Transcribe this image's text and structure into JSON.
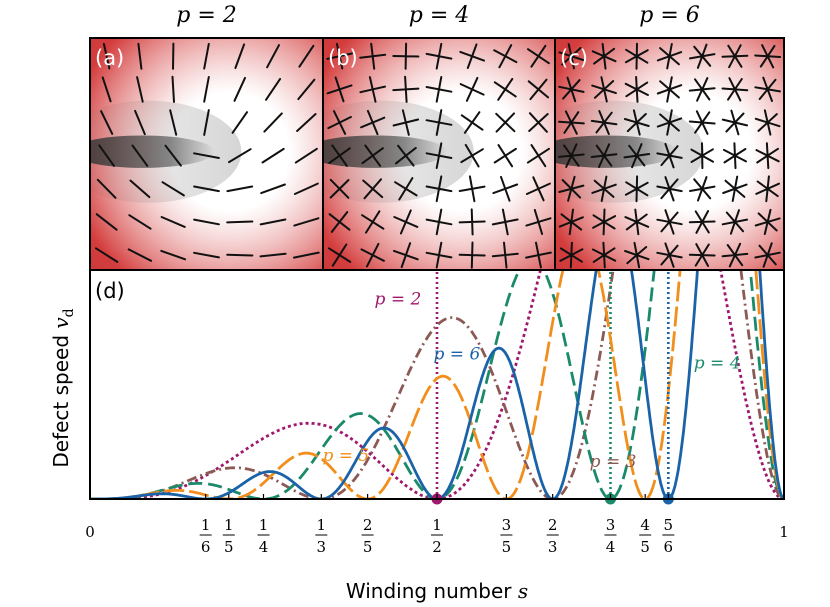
{
  "panels": [
    {
      "label": "(a)",
      "title": "p = 2",
      "p": 2
    },
    {
      "label": "(b)",
      "title": "p = 4",
      "p": 4
    },
    {
      "label": "(c)",
      "title": "p = 6",
      "p": 6
    }
  ],
  "colors": {
    "shade_light": "#ffffff",
    "shade_mid": "#d43d3d",
    "shade_dark": "#3a3a3a"
  },
  "chart_data": {
    "type": "line",
    "panel_label": "(d)",
    "xlabel": "Winding number",
    "xlabel_symbol": "s",
    "ylabel": "Defect speed",
    "ylabel_symbol": "v",
    "ylabel_subscript": "d",
    "xlim": [
      0,
      1
    ],
    "ylim": [
      0,
      1
    ],
    "ticks": [
      {
        "value": 0,
        "num": "0",
        "den": ""
      },
      {
        "value": 0.16667,
        "num": "1",
        "den": "6"
      },
      {
        "value": 0.2,
        "num": "1",
        "den": "5"
      },
      {
        "value": 0.25,
        "num": "1",
        "den": "4"
      },
      {
        "value": 0.33333,
        "num": "1",
        "den": "3"
      },
      {
        "value": 0.4,
        "num": "2",
        "den": "5"
      },
      {
        "value": 0.5,
        "num": "1",
        "den": "2"
      },
      {
        "value": 0.6,
        "num": "3",
        "den": "5"
      },
      {
        "value": 0.66667,
        "num": "2",
        "den": "3"
      },
      {
        "value": 0.75,
        "num": "3",
        "den": "4"
      },
      {
        "value": 0.8,
        "num": "4",
        "den": "5"
      },
      {
        "value": 0.83333,
        "num": "5",
        "den": "6"
      },
      {
        "value": 1,
        "num": "1",
        "den": ""
      }
    ],
    "series": [
      {
        "name": "p = 2",
        "p": 2,
        "color": "#a0186e",
        "dash": "3,3",
        "amp": 0.74,
        "spike_at": 0.5,
        "x": [
          0,
          0.5,
          1
        ],
        "y": [
          0,
          0,
          0
        ],
        "label": {
          "text": "p = 2",
          "x": 0.41,
          "y": 0.85
        }
      },
      {
        "name": "p = 3",
        "p": 3,
        "color": "#8c5a55",
        "dash": "10,4,2,4",
        "amp": 0.6,
        "x": [
          0,
          0.33333,
          0.66667,
          1
        ],
        "y": [
          0,
          0,
          0,
          0
        ],
        "label": {
          "text": "p = 3",
          "x": 0.72,
          "y": 0.14
        }
      },
      {
        "name": "p = 4",
        "p": 4,
        "color": "#1a8a6a",
        "dash": "14,6",
        "amp": 0.48,
        "spike_at": 0.75,
        "x": [
          0,
          0.25,
          0.5,
          0.75,
          1
        ],
        "y": [
          0,
          0,
          0,
          0,
          0
        ],
        "label": {
          "text": "p = 4",
          "x": 0.87,
          "y": 0.57
        }
      },
      {
        "name": "p = 5",
        "p": 5,
        "color": "#f28e1c",
        "dash": "20,5",
        "amp": 0.38,
        "x": [
          0,
          0.2,
          0.4,
          0.6,
          0.8,
          1
        ],
        "y": [
          0,
          0,
          0,
          0,
          0,
          0
        ],
        "label": {
          "text": "p = 5",
          "x": 0.335,
          "y": 0.165
        }
      },
      {
        "name": "p = 6",
        "p": 6,
        "color": "#1a63a8",
        "dash": "",
        "amp": 0.31,
        "spike_at": 0.83333,
        "x": [
          0,
          0.16667,
          0.33333,
          0.5,
          0.66667,
          0.83333,
          1
        ],
        "y": [
          0,
          0,
          0,
          0,
          0,
          0,
          0
        ],
        "label": {
          "text": "p = 6",
          "x": 0.495,
          "y": 0.61
        }
      }
    ]
  }
}
